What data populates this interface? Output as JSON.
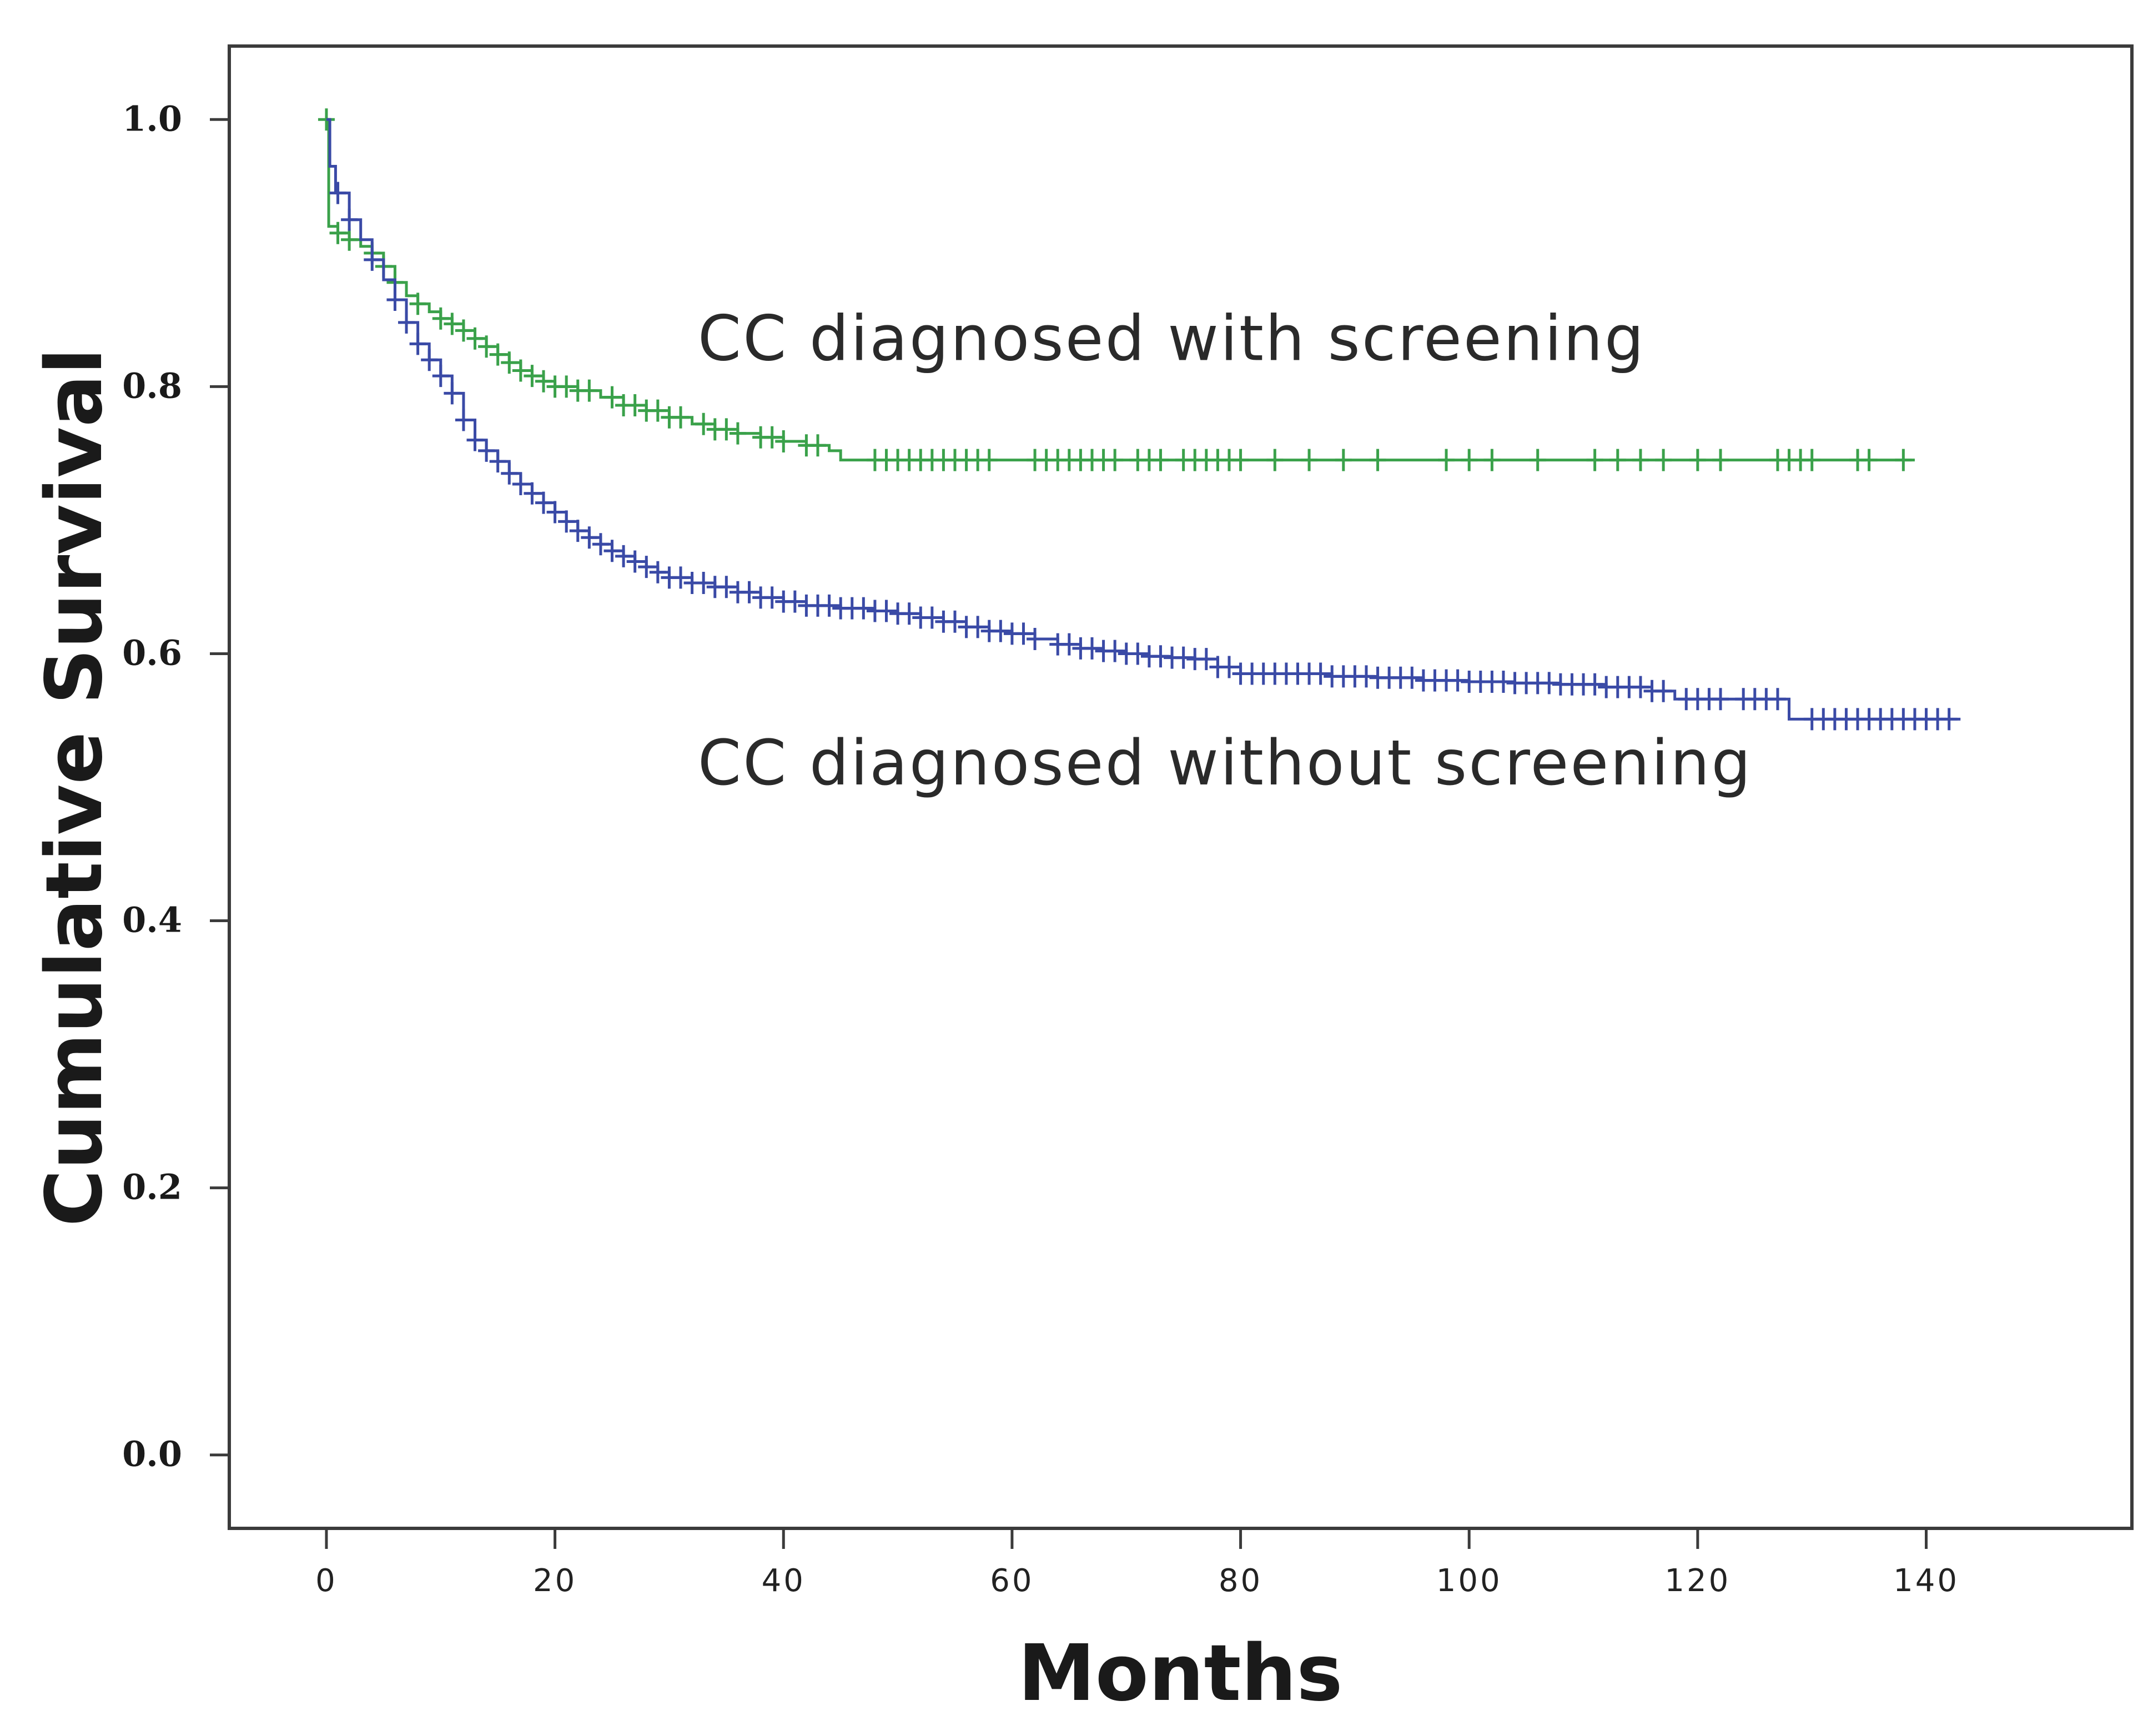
{
  "chart_data": {
    "type": "line",
    "subtype": "kaplan-meier",
    "title": "",
    "xlabel": "Months",
    "ylabel": "Cumulative Survival",
    "xlim": [
      -8.5,
      158
    ],
    "ylim": [
      -0.055,
      1.055
    ],
    "xticks": [
      0,
      20,
      40,
      60,
      80,
      100,
      120,
      140
    ],
    "xtick_labels": [
      "0",
      "20",
      "40",
      "60",
      "80",
      "100",
      "120",
      "140"
    ],
    "yticks": [
      0.0,
      0.2,
      0.4,
      0.6,
      0.8,
      1.0
    ],
    "ytick_labels": [
      "0.0",
      "0.2",
      "0.4",
      "0.6",
      "0.8",
      "1.0"
    ],
    "grid": false,
    "legend": "none",
    "colors": {
      "with_screening": "#3aa14a",
      "without_screening": "#3a4aa6"
    },
    "annotations": [
      {
        "text": "CC diagnosed with screening",
        "x": 32.5,
        "y": 0.82,
        "series": "with_screening"
      },
      {
        "text": "CC diagnosed without screening",
        "x": 32.5,
        "y": 0.502,
        "series": "without_screening"
      }
    ],
    "series": [
      {
        "name": "CC diagnosed with screening",
        "key": "with_screening",
        "step_x": [
          0,
          0.2,
          1,
          2,
          3,
          4,
          5,
          6,
          7,
          8,
          9,
          10,
          11,
          12,
          13,
          14,
          15,
          16,
          17,
          18,
          19,
          20,
          22,
          24,
          26,
          28,
          30,
          32,
          34,
          36,
          38,
          40,
          42,
          44,
          45,
          139
        ],
        "step_y": [
          1.0,
          0.92,
          0.915,
          0.91,
          0.905,
          0.9,
          0.89,
          0.878,
          0.868,
          0.862,
          0.856,
          0.851,
          0.847,
          0.842,
          0.836,
          0.83,
          0.824,
          0.818,
          0.812,
          0.808,
          0.804,
          0.8,
          0.797,
          0.792,
          0.786,
          0.782,
          0.777,
          0.772,
          0.768,
          0.765,
          0.762,
          0.759,
          0.756,
          0.752,
          0.745,
          0.745
        ],
        "censored_x": [
          0,
          1,
          2,
          4,
          5,
          6,
          8,
          10,
          11,
          12,
          13,
          14,
          15,
          16,
          17,
          18,
          19,
          20,
          21,
          22,
          23,
          25,
          26,
          27,
          28,
          29,
          30,
          31,
          33,
          34,
          35,
          36,
          38,
          39,
          40,
          42,
          43,
          48,
          49,
          50,
          51,
          52,
          53,
          54,
          55,
          56,
          57,
          58,
          62,
          63,
          64,
          65,
          66,
          67,
          68,
          69,
          71,
          72,
          73,
          75,
          76,
          77,
          78,
          79,
          80,
          83,
          86,
          89,
          92,
          98,
          100,
          102,
          106,
          111,
          113,
          115,
          117,
          120,
          122,
          127,
          128,
          129,
          130,
          134,
          135,
          138
        ]
      },
      {
        "name": "CC diagnosed without screening",
        "key": "without_screening",
        "step_x": [
          0,
          0.3,
          0.8,
          2,
          3,
          4,
          5,
          6,
          7,
          8,
          9,
          10,
          11,
          12,
          13,
          14,
          15,
          16,
          17,
          18,
          19,
          20,
          21,
          22,
          23,
          24,
          25,
          26,
          27,
          28,
          29,
          30,
          32,
          34,
          36,
          38,
          40,
          42,
          45,
          48,
          50,
          52,
          54,
          56,
          58,
          60,
          62,
          64,
          66,
          68,
          70,
          72,
          74,
          76,
          78,
          80,
          84,
          88,
          92,
          96,
          100,
          104,
          108,
          112,
          116,
          118,
          128,
          143
        ],
        "step_y": [
          1.0,
          0.965,
          0.945,
          0.925,
          0.91,
          0.895,
          0.88,
          0.865,
          0.848,
          0.832,
          0.82,
          0.808,
          0.795,
          0.775,
          0.76,
          0.752,
          0.744,
          0.735,
          0.727,
          0.72,
          0.713,
          0.706,
          0.699,
          0.692,
          0.687,
          0.682,
          0.677,
          0.673,
          0.669,
          0.665,
          0.661,
          0.657,
          0.653,
          0.65,
          0.646,
          0.642,
          0.639,
          0.636,
          0.634,
          0.632,
          0.63,
          0.627,
          0.624,
          0.62,
          0.617,
          0.615,
          0.611,
          0.607,
          0.604,
          0.602,
          0.6,
          0.598,
          0.597,
          0.596,
          0.59,
          0.585,
          0.585,
          0.583,
          0.582,
          0.58,
          0.579,
          0.578,
          0.577,
          0.575,
          0.572,
          0.566,
          0.551,
          0.551
        ],
        "censored_x": [
          1,
          2,
          4,
          6,
          7,
          8,
          9,
          10,
          11,
          12,
          13,
          14,
          15,
          16,
          17,
          18,
          19,
          20,
          21,
          22,
          23,
          24,
          25,
          26,
          27,
          28,
          29,
          30,
          31,
          32,
          33,
          34,
          35,
          36,
          37,
          38,
          39,
          40,
          41,
          42,
          43,
          44,
          45,
          46,
          47,
          48,
          49,
          50,
          51,
          52,
          53,
          54,
          55,
          56,
          57,
          58,
          59,
          60,
          61,
          62,
          64,
          65,
          66,
          67,
          68,
          69,
          70,
          71,
          72,
          73,
          74,
          75,
          76,
          77,
          78,
          79,
          80,
          81,
          82,
          83,
          84,
          85,
          86,
          87,
          88,
          89,
          90,
          91,
          92,
          93,
          94,
          95,
          96,
          97,
          98,
          99,
          100,
          101,
          102,
          103,
          104,
          105,
          106,
          107,
          108,
          109,
          110,
          111,
          112,
          113,
          114,
          115,
          116,
          117,
          119,
          120,
          121,
          122,
          124,
          125,
          126,
          127,
          130,
          131,
          132,
          133,
          134,
          135,
          136,
          137,
          138,
          139,
          140,
          141,
          142
        ]
      }
    ]
  }
}
